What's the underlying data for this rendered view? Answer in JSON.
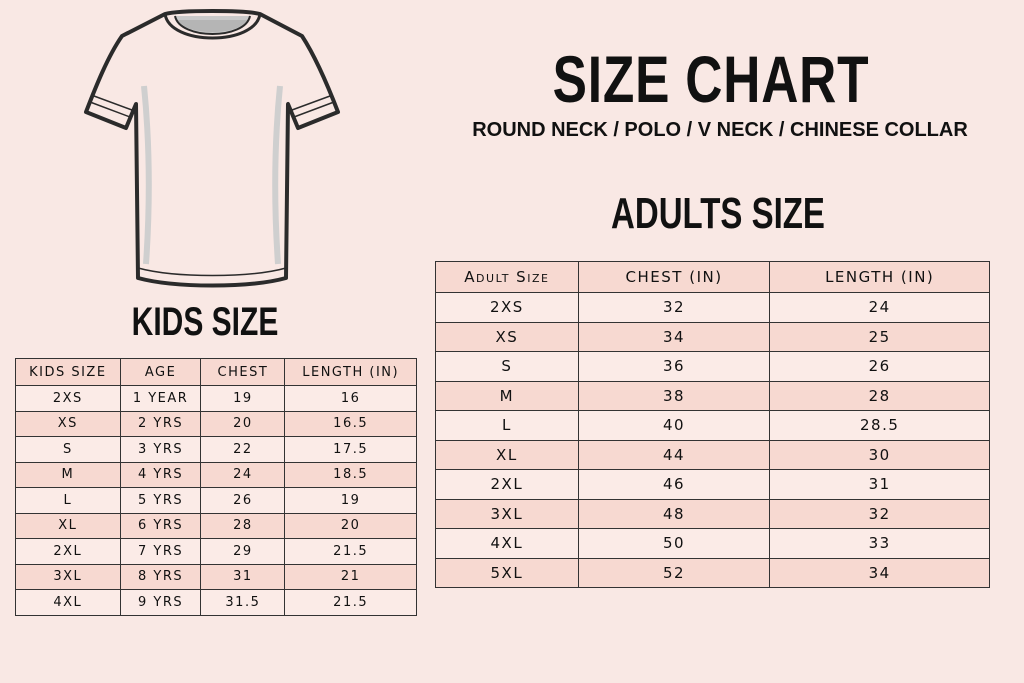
{
  "header": {
    "title": "SIZE CHART",
    "subtitle": "ROUND NECK / POLO / V NECK / CHINESE COLLAR"
  },
  "colors": {
    "background": "#f9e8e4",
    "row_light": "#fbebe7",
    "row_dark": "#f7d9d1",
    "border": "#333333"
  },
  "illustration": {
    "icon": "t-shirt-icon"
  },
  "kids": {
    "title": "KIDS SIZE",
    "columns": [
      "KIDS SIZE",
      "AGE",
      "CHEST",
      "LENGTH (IN)"
    ],
    "rows": [
      [
        "2XS",
        "1 YEAR",
        "19",
        "16"
      ],
      [
        "XS",
        "2 YRS",
        "20",
        "16.5"
      ],
      [
        "S",
        "3 YRS",
        "22",
        "17.5"
      ],
      [
        "M",
        "4 YRS",
        "24",
        "18.5"
      ],
      [
        "L",
        "5 YRS",
        "26",
        "19"
      ],
      [
        "XL",
        "6 YRS",
        "28",
        "20"
      ],
      [
        "2XL",
        "7 YRS",
        "29",
        "21.5"
      ],
      [
        "3XL",
        "8 YRS",
        "31",
        "21"
      ],
      [
        "4XL",
        "9 YRS",
        "31.5",
        "21.5"
      ]
    ]
  },
  "adults": {
    "title": "ADULTS SIZE",
    "columns": [
      "Adult Size",
      "CHEST (IN)",
      "LENGTH (IN)"
    ],
    "rows": [
      [
        "2XS",
        "32",
        "24"
      ],
      [
        "XS",
        "34",
        "25"
      ],
      [
        "S",
        "36",
        "26"
      ],
      [
        "M",
        "38",
        "28"
      ],
      [
        "L",
        "40",
        "28.5"
      ],
      [
        "XL",
        "44",
        "30"
      ],
      [
        "2XL",
        "46",
        "31"
      ],
      [
        "3XL",
        "48",
        "32"
      ],
      [
        "4XL",
        "50",
        "33"
      ],
      [
        "5XL",
        "52",
        "34"
      ]
    ]
  }
}
